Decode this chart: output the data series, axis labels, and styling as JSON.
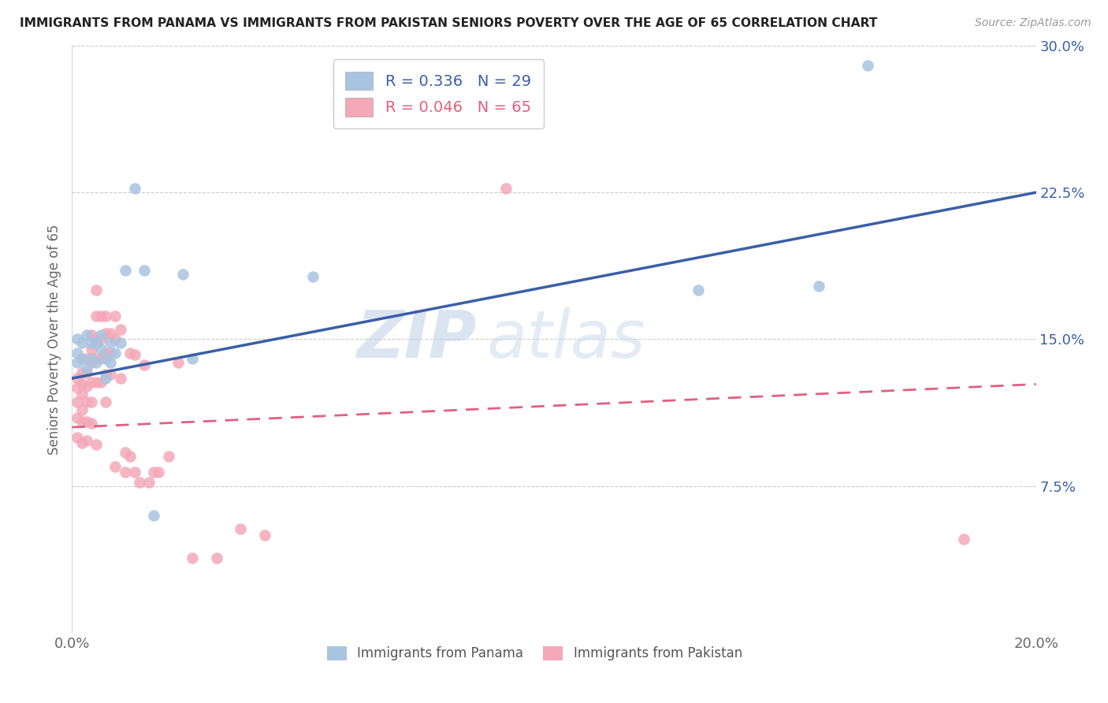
{
  "title": "IMMIGRANTS FROM PANAMA VS IMMIGRANTS FROM PAKISTAN SENIORS POVERTY OVER THE AGE OF 65 CORRELATION CHART",
  "source": "Source: ZipAtlas.com",
  "ylabel": "Seniors Poverty Over the Age of 65",
  "xlim": [
    0.0,
    0.2
  ],
  "ylim": [
    0.0,
    0.3
  ],
  "xticks": [
    0.0,
    0.05,
    0.1,
    0.15,
    0.2
  ],
  "yticks": [
    0.0,
    0.075,
    0.15,
    0.225,
    0.3
  ],
  "xticklabels": [
    "0.0%",
    "",
    "",
    "",
    "20.0%"
  ],
  "yticklabels": [
    "",
    "7.5%",
    "15.0%",
    "22.5%",
    "30.0%"
  ],
  "panama_color": "#a8c4e0",
  "pakistan_color": "#f4a8b8",
  "panama_line_color": "#3a5fa8",
  "pakistan_line_color": "#e06080",
  "panama_R": 0.336,
  "panama_N": 29,
  "pakistan_R": 0.046,
  "pakistan_N": 65,
  "watermark_zip": "ZIP",
  "watermark_atlas": "atlas",
  "panama_x": [
    0.001,
    0.001,
    0.001,
    0.002,
    0.002,
    0.003,
    0.003,
    0.004,
    0.004,
    0.005,
    0.005,
    0.006,
    0.006,
    0.007,
    0.007,
    0.008,
    0.008,
    0.009,
    0.01,
    0.011,
    0.013,
    0.015,
    0.017,
    0.023,
    0.025,
    0.05,
    0.13,
    0.155,
    0.165
  ],
  "panama_y": [
    0.15,
    0.143,
    0.138,
    0.148,
    0.14,
    0.152,
    0.135,
    0.148,
    0.14,
    0.148,
    0.138,
    0.152,
    0.145,
    0.14,
    0.13,
    0.148,
    0.138,
    0.143,
    0.148,
    0.185,
    0.227,
    0.185,
    0.06,
    0.183,
    0.14,
    0.182,
    0.175,
    0.177,
    0.29
  ],
  "pakistan_x": [
    0.001,
    0.001,
    0.001,
    0.001,
    0.001,
    0.002,
    0.002,
    0.002,
    0.002,
    0.002,
    0.002,
    0.003,
    0.003,
    0.003,
    0.003,
    0.003,
    0.003,
    0.004,
    0.004,
    0.004,
    0.004,
    0.004,
    0.004,
    0.005,
    0.005,
    0.005,
    0.005,
    0.005,
    0.005,
    0.006,
    0.006,
    0.006,
    0.006,
    0.007,
    0.007,
    0.007,
    0.007,
    0.007,
    0.008,
    0.008,
    0.008,
    0.009,
    0.009,
    0.009,
    0.01,
    0.01,
    0.011,
    0.011,
    0.012,
    0.012,
    0.013,
    0.013,
    0.014,
    0.015,
    0.016,
    0.017,
    0.018,
    0.02,
    0.022,
    0.025,
    0.03,
    0.035,
    0.04,
    0.09,
    0.185
  ],
  "pakistan_y": [
    0.13,
    0.125,
    0.118,
    0.11,
    0.1,
    0.133,
    0.127,
    0.122,
    0.114,
    0.108,
    0.097,
    0.14,
    0.133,
    0.126,
    0.118,
    0.108,
    0.098,
    0.152,
    0.145,
    0.138,
    0.128,
    0.118,
    0.107,
    0.175,
    0.162,
    0.15,
    0.14,
    0.128,
    0.096,
    0.162,
    0.15,
    0.14,
    0.128,
    0.162,
    0.153,
    0.143,
    0.132,
    0.118,
    0.153,
    0.143,
    0.132,
    0.162,
    0.15,
    0.085,
    0.155,
    0.13,
    0.092,
    0.082,
    0.143,
    0.09,
    0.142,
    0.082,
    0.077,
    0.137,
    0.077,
    0.082,
    0.082,
    0.09,
    0.138,
    0.038,
    0.038,
    0.053,
    0.05,
    0.227,
    0.048
  ]
}
